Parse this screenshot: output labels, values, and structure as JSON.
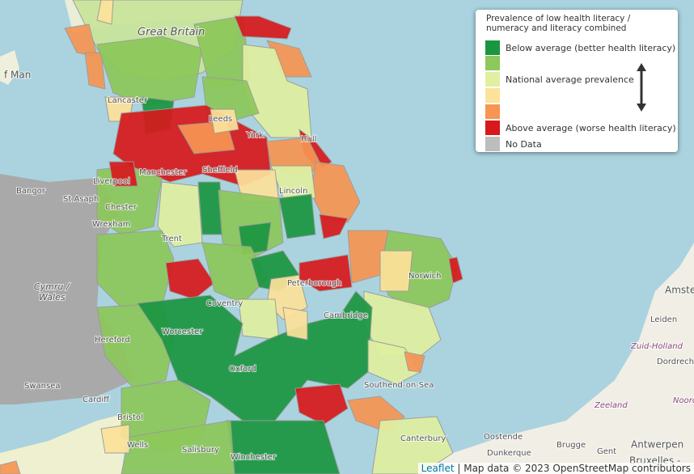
{
  "legend": {
    "title": "Prevalence of low health literacy / numeracy and literacy combined",
    "items": [
      {
        "color": "#1a9641",
        "label": "Below average (better health literacy)"
      },
      {
        "color": "#8cc85a"
      },
      {
        "color": "#e0f0a0",
        "label": "National average prevalence"
      },
      {
        "color": "#fde29a"
      },
      {
        "color": "#f79553"
      },
      {
        "color": "#d7191c",
        "label": "Above average (worse health literacy)"
      },
      {
        "color": "#bdbdbd",
        "label": "No Data"
      }
    ]
  },
  "places": [
    "Great Britain",
    "f Man",
    "Lancaster",
    "Leeds",
    "York",
    "Hull",
    "Sheffield",
    "Manchester",
    "Liverpool",
    "Bangor",
    "St Asaph",
    "Wrexham",
    "Chester",
    "Lincoln",
    "Trent",
    "Norwich",
    "Peterborough",
    "Cymru /",
    "Wales",
    "Worcester",
    "Hereford",
    "Coventry",
    "Swansea",
    "Cardiff",
    "Bristol",
    "Wells",
    "Salisbury",
    "Winchester",
    "Oxford",
    "Cambridge",
    "Southend-on-Sea",
    "Canterbury",
    "Dunkerque",
    "Brugge",
    "Gent",
    "Antwerpen",
    "Bruxelles -",
    "Oostende",
    "Amste",
    "Leiden",
    "Zuid-Holland",
    "Dordrecht",
    "Zeeland",
    "Noord-"
  ],
  "attribution": {
    "link": "Leaflet",
    "text": "| Map data © 2023 OpenStreetMap contributors"
  }
}
